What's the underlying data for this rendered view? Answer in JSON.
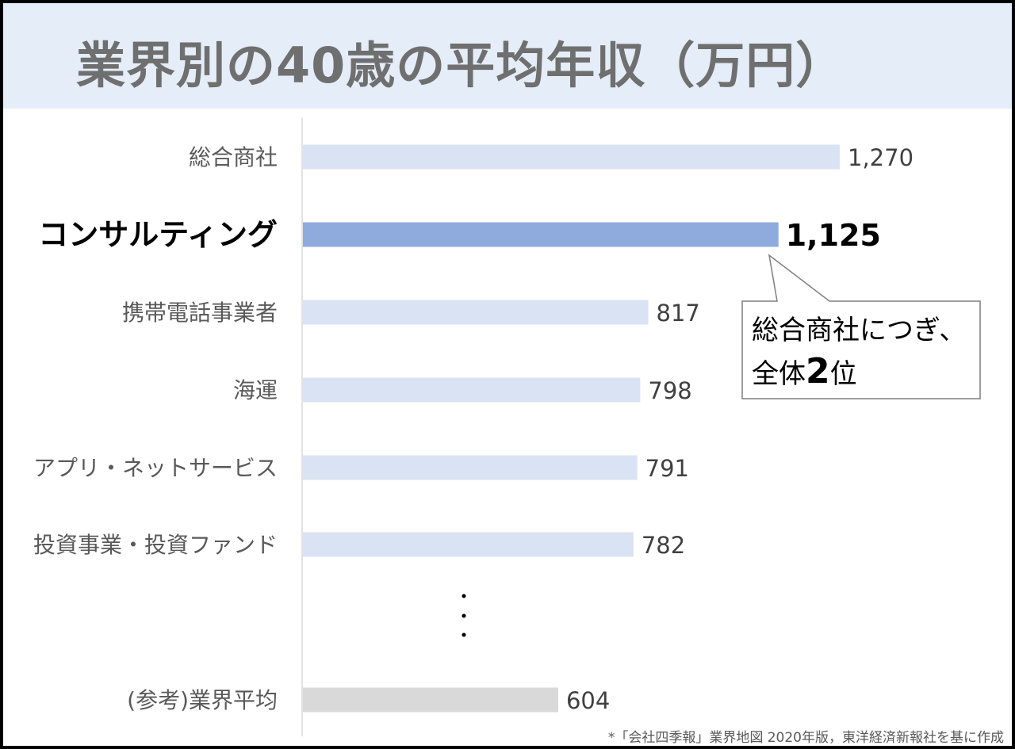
{
  "chart_data": {
    "type": "bar",
    "orientation": "horizontal",
    "title": "業界別の40歳の平均年収（万円）",
    "categories": [
      "総合商社",
      "コンサルティング",
      "携帯電話事業者",
      "海運",
      "アプリ・ネットサービス",
      "投資事業・投資ファンド",
      "(参考)業界平均"
    ],
    "value_labels": [
      "1,270",
      "1,125",
      "817",
      "798",
      "791",
      "782",
      "604"
    ],
    "values": [
      1270,
      1125,
      817,
      798,
      791,
      782,
      604
    ],
    "highlight": "コンサルティング",
    "omitted_between": [
      "投資事業・投資ファンド",
      "(参考)業界平均"
    ],
    "colors": {
      "default": "#dae3f3",
      "highlight": "#8faadc",
      "reference": "#d9d9d9"
    },
    "xlabel": "",
    "ylabel": "",
    "grid": false
  },
  "callout": {
    "line1": "総合商社につぎ、",
    "line2_pre": "全体",
    "line2_num": "2",
    "line2_post": "位"
  },
  "source": "*「会社四季報」業界地図 2020年版，東洋経済新報社を基に作成"
}
